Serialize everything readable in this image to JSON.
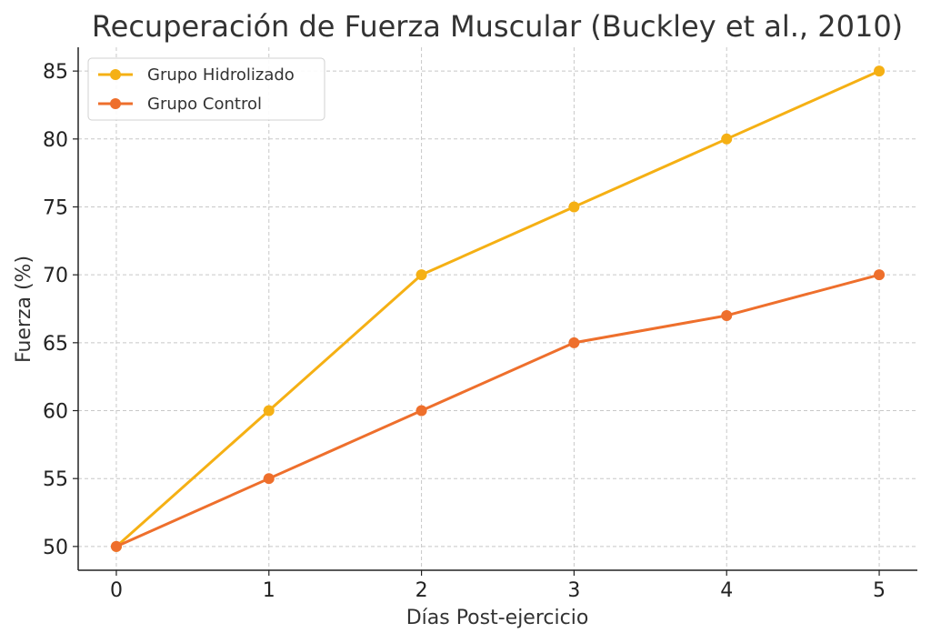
{
  "chart_data": {
    "type": "line",
    "title": "Recuperación de Fuerza Muscular (Buckley et al., 2010)",
    "xlabel": "Días Post-ejercicio",
    "ylabel": "Fuerza (%)",
    "x": [
      0,
      1,
      2,
      3,
      4,
      5
    ],
    "xlim": [
      -0.25,
      5.25
    ],
    "ylim": [
      48.25,
      86.75
    ],
    "xticks": [
      0,
      1,
      2,
      3,
      4,
      5
    ],
    "yticks": [
      50,
      55,
      60,
      65,
      70,
      75,
      80,
      85
    ],
    "grid": true,
    "legend_position": "top-left",
    "series": [
      {
        "name": "Grupo Hidrolizado",
        "color": "#F5B014",
        "values": [
          50,
          60,
          70,
          75,
          80,
          85
        ]
      },
      {
        "name": "Grupo Control",
        "color": "#EE6F2C",
        "values": [
          50,
          55,
          60,
          65,
          67,
          70
        ]
      }
    ]
  }
}
